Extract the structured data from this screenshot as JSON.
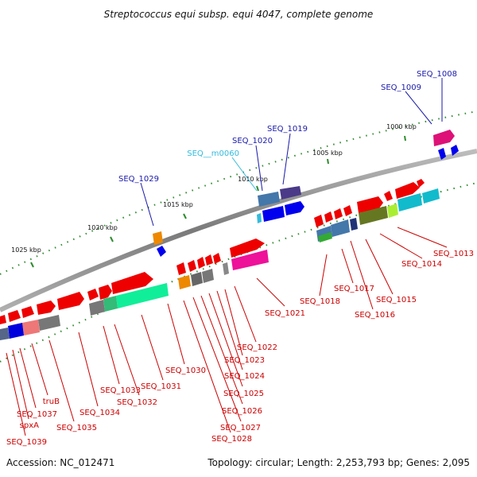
{
  "title": "Streptococcus equi subsp. equi 4047, complete genome",
  "footer": {
    "accession": "Accession: NC_012471",
    "summary": "Topology: circular; Length: 2,253,793 bp; Genes: 2,095"
  },
  "colors": {
    "backbone": "#8a8a8a",
    "tick": "#2e8b2e",
    "label_red": "#cc0000",
    "label_blue": "#1a1aaa",
    "label_cyan": "#33bbdd"
  },
  "ticks": [
    {
      "label": "1000 kbp"
    },
    {
      "label": "1005 kbp"
    },
    {
      "label": "1010 kbp"
    },
    {
      "label": "1015 kbp"
    },
    {
      "label": "1020 kbp"
    },
    {
      "label": "1025 kbp"
    }
  ],
  "labels": [
    {
      "text": "SEQ_1008",
      "color": "blue"
    },
    {
      "text": "SEQ_1009",
      "color": "blue"
    },
    {
      "text": "SEQ_1019",
      "color": "blue"
    },
    {
      "text": "SEQ_1020",
      "color": "blue"
    },
    {
      "text": "SEQ__m0060",
      "color": "cyan"
    },
    {
      "text": "SEQ_1029",
      "color": "blue"
    },
    {
      "text": "SEQ_1013",
      "color": "red"
    },
    {
      "text": "SEQ_1014",
      "color": "red"
    },
    {
      "text": "SEQ_1015",
      "color": "red"
    },
    {
      "text": "SEQ_1016",
      "color": "red"
    },
    {
      "text": "SEQ_1017",
      "color": "red"
    },
    {
      "text": "SEQ_1018",
      "color": "red"
    },
    {
      "text": "SEQ_1021",
      "color": "red"
    },
    {
      "text": "SEQ_1022",
      "color": "red"
    },
    {
      "text": "SEQ_1023",
      "color": "red"
    },
    {
      "text": "SEQ_1024",
      "color": "red"
    },
    {
      "text": "SEQ_1025",
      "color": "red"
    },
    {
      "text": "SEQ_1026",
      "color": "red"
    },
    {
      "text": "SEQ_1027",
      "color": "red"
    },
    {
      "text": "SEQ_1028",
      "color": "red"
    },
    {
      "text": "SEQ_1030",
      "color": "red"
    },
    {
      "text": "SEQ_1031",
      "color": "red"
    },
    {
      "text": "SEQ_1032",
      "color": "red"
    },
    {
      "text": "SEQ_1033",
      "color": "red"
    },
    {
      "text": "SEQ_1034",
      "color": "red"
    },
    {
      "text": "SEQ_1035",
      "color": "red"
    },
    {
      "text": "truB",
      "color": "red"
    },
    {
      "text": "SEQ_1037",
      "color": "red"
    },
    {
      "text": "spxA",
      "color": "red"
    },
    {
      "text": "SEQ_1039",
      "color": "red"
    }
  ]
}
